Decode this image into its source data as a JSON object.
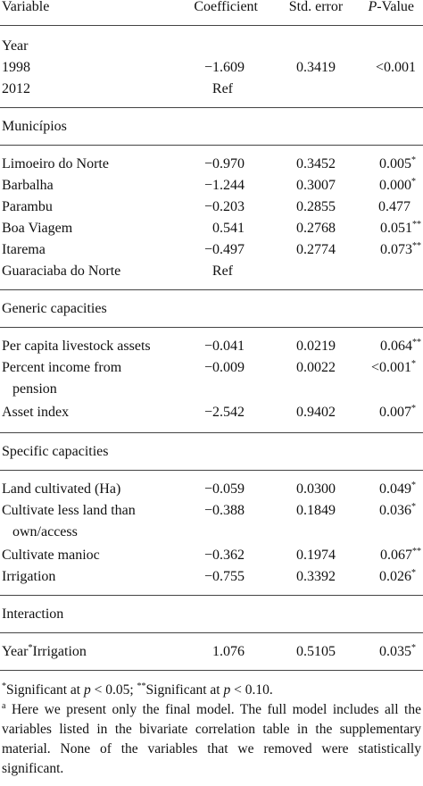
{
  "header": {
    "variable": "Variable",
    "coefficient": "Coefficient",
    "std_error": "Std. error",
    "p_prefix": "P",
    "p_suffix": "-Value"
  },
  "sections": {
    "year": {
      "label": "Year",
      "rows": [
        {
          "variable": "1998",
          "coef": "−1.609",
          "se": "0.3419",
          "p": "<0.001",
          "sig": ""
        },
        {
          "variable": "2012",
          "coef": "Ref",
          "se": "",
          "p": "",
          "sig": ""
        }
      ]
    },
    "municipios": {
      "label": "Municípios",
      "rows": [
        {
          "variable": "Limoeiro do Norte",
          "coef": "−0.970",
          "se": "0.3452",
          "p": "0.005",
          "sig": "*"
        },
        {
          "variable": "Barbalha",
          "coef": "−1.244",
          "se": "0.3007",
          "p": "0.000",
          "sig": "*"
        },
        {
          "variable": "Parambu",
          "coef": "−0.203",
          "se": "0.2855",
          "p": "0.477",
          "sig": ""
        },
        {
          "variable": "Boa Viagem",
          "coef": "0.541",
          "se": "0.2768",
          "p": "0.051",
          "sig": "**"
        },
        {
          "variable": "Itarema",
          "coef": "−0.497",
          "se": "0.2774",
          "p": "0.073",
          "sig": "**"
        },
        {
          "variable": "Guaraciaba do Norte",
          "coef": "Ref",
          "se": "",
          "p": "",
          "sig": ""
        }
      ]
    },
    "generic": {
      "label": "Generic capacities",
      "rows": [
        {
          "variable": "Per capita livestock assets",
          "variable2": "",
          "coef": "−0.041",
          "se": "0.0219",
          "p": "0.064",
          "sig": "**"
        },
        {
          "variable": "Percent income from",
          "variable2": "pension",
          "coef": "−0.009",
          "se": "0.0022",
          "p": "<0.001",
          "sig": "*"
        },
        {
          "variable": "Asset index",
          "variable2": "",
          "coef": "−2.542",
          "se": "0.9402",
          "p": "0.007",
          "sig": "*"
        }
      ]
    },
    "specific": {
      "label": "Specific capacities",
      "rows": [
        {
          "variable": "Land cultivated (Ha)",
          "variable2": "",
          "coef": "−0.059",
          "se": "0.0300",
          "p": "0.049",
          "sig": "*"
        },
        {
          "variable": "Cultivate less land than",
          "variable2": "own/access",
          "coef": "−0.388",
          "se": "0.1849",
          "p": "0.036",
          "sig": "*"
        },
        {
          "variable": "Cultivate manioc",
          "variable2": "",
          "coef": "−0.362",
          "se": "0.1974",
          "p": "0.067",
          "sig": "**"
        },
        {
          "variable": "Irrigation",
          "variable2": "",
          "coef": "−0.755",
          "se": "0.3392",
          "p": "0.026",
          "sig": "*"
        }
      ]
    },
    "interaction": {
      "label": "Interaction",
      "rows": [
        {
          "variable": "Year",
          "variable_sup": "*",
          "variable_rest": "Irrigation",
          "coef": "1.076",
          "se": "0.5105",
          "p": "0.035",
          "sig": "*"
        }
      ]
    }
  },
  "footnotes": {
    "sig1_mark": "*",
    "sig1_text": "Significant at ",
    "sig1_p": "p",
    "sig1_rest": " < 0.05; ",
    "sig2_mark": "**",
    "sig2_text": "Significant at ",
    "sig2_p": "p",
    "sig2_rest": " < 0.10.",
    "note_mark": "a",
    "note_text": " Here we present only the final model. The full model includes all the variables listed in the bivariate correlation table in the supplementary material. None of the variables that we removed were statistically significant."
  }
}
